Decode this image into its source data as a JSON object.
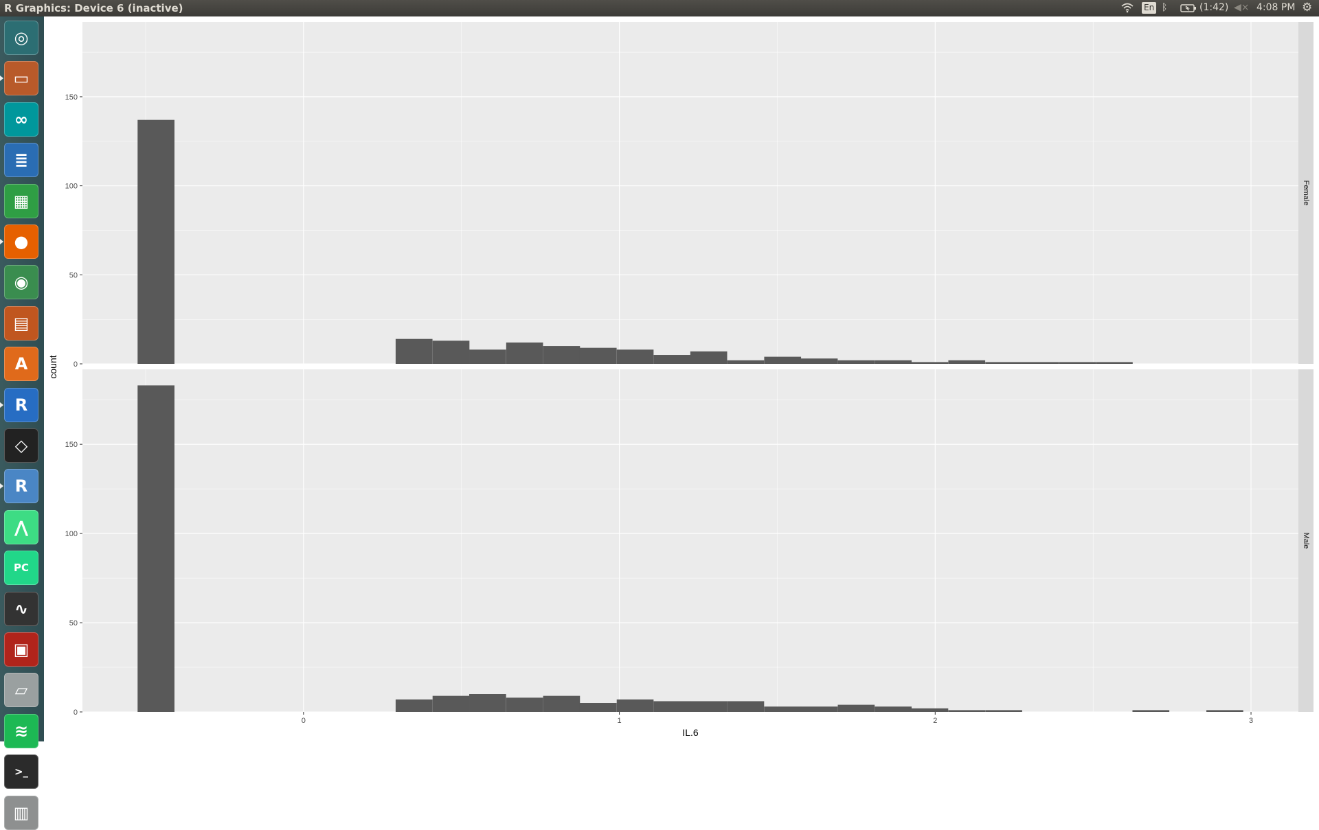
{
  "window": {
    "title": "R Graphics: Device 6 (inactive)"
  },
  "indicators": {
    "wifi_icon": "wifi-icon",
    "language": "En",
    "bluetooth_icon": "bluetooth-icon",
    "battery_icon": "battery-icon",
    "battery_text": "(1:42)",
    "volume_icon": "volume-muted-icon",
    "time": "4:08 PM",
    "settings_icon": "gear-icon"
  },
  "launcher": [
    {
      "name": "ubuntu-dash-icon",
      "color": "#2c6e73"
    },
    {
      "name": "files-icon",
      "color": "#b85a2a"
    },
    {
      "name": "arduino-icon",
      "color": "#00979c"
    },
    {
      "name": "libreoffice-writer-icon",
      "color": "#2a6db3"
    },
    {
      "name": "libreoffice-calc-icon",
      "color": "#2f9e44"
    },
    {
      "name": "firefox-icon",
      "color": "#e66000"
    },
    {
      "name": "chrome-icon",
      "color": "#3a8d4f"
    },
    {
      "name": "libreoffice-impress-icon",
      "color": "#c0561f"
    },
    {
      "name": "software-center-icon",
      "color": "#e06a1b"
    },
    {
      "name": "r-icon",
      "color": "#276dc3"
    },
    {
      "name": "unity-icon",
      "color": "#222222"
    },
    {
      "name": "rstudio-icon",
      "color": "#4a86c5"
    },
    {
      "name": "android-studio-icon",
      "color": "#3ddc84"
    },
    {
      "name": "pycharm-icon",
      "color": "#21d789"
    },
    {
      "name": "system-monitor-icon",
      "color": "#333333"
    },
    {
      "name": "terminal-red-icon",
      "color": "#b0241b"
    },
    {
      "name": "drive-icon",
      "color": "#9aa0a0"
    },
    {
      "name": "spotify-icon",
      "color": "#1db954"
    },
    {
      "name": "terminal-icon",
      "color": "#2b2b2b"
    },
    {
      "name": "trash-icon",
      "color": "#8e9090"
    }
  ],
  "chart_data": {
    "type": "bar",
    "subtype": "faceted-histogram",
    "xlabel": "IL.6",
    "ylabel": "count",
    "x_ticks": [
      "0",
      "1",
      "2",
      "3"
    ],
    "y_ticks": [
      "0",
      "50",
      "100",
      "150"
    ],
    "xlim": [
      -0.7,
      3.15
    ],
    "bin_width": 0.1167,
    "bar_color": "#595959",
    "panel_background": "#ebebeb",
    "grid": true,
    "facets": [
      {
        "label": "Female",
        "ylim": [
          0,
          192
        ],
        "bins": [
          {
            "x": -0.467,
            "count": 137
          },
          {
            "x": 0.35,
            "count": 14
          },
          {
            "x": 0.467,
            "count": 13
          },
          {
            "x": 0.583,
            "count": 8
          },
          {
            "x": 0.7,
            "count": 12
          },
          {
            "x": 0.817,
            "count": 10
          },
          {
            "x": 0.933,
            "count": 9
          },
          {
            "x": 1.05,
            "count": 8
          },
          {
            "x": 1.167,
            "count": 5
          },
          {
            "x": 1.283,
            "count": 7
          },
          {
            "x": 1.4,
            "count": 2
          },
          {
            "x": 1.517,
            "count": 4
          },
          {
            "x": 1.633,
            "count": 3
          },
          {
            "x": 1.75,
            "count": 2
          },
          {
            "x": 1.867,
            "count": 2
          },
          {
            "x": 1.983,
            "count": 1
          },
          {
            "x": 2.1,
            "count": 2
          },
          {
            "x": 2.217,
            "count": 1
          },
          {
            "x": 2.333,
            "count": 1
          },
          {
            "x": 2.45,
            "count": 1
          },
          {
            "x": 2.567,
            "count": 1
          }
        ]
      },
      {
        "label": "Male",
        "ylim": [
          0,
          192
        ],
        "bins": [
          {
            "x": -0.467,
            "count": 183
          },
          {
            "x": 0.35,
            "count": 7
          },
          {
            "x": 0.467,
            "count": 9
          },
          {
            "x": 0.583,
            "count": 10
          },
          {
            "x": 0.7,
            "count": 8
          },
          {
            "x": 0.817,
            "count": 9
          },
          {
            "x": 0.933,
            "count": 5
          },
          {
            "x": 1.05,
            "count": 7
          },
          {
            "x": 1.167,
            "count": 6
          },
          {
            "x": 1.283,
            "count": 6
          },
          {
            "x": 1.4,
            "count": 6
          },
          {
            "x": 1.517,
            "count": 3
          },
          {
            "x": 1.633,
            "count": 3
          },
          {
            "x": 1.75,
            "count": 4
          },
          {
            "x": 1.867,
            "count": 3
          },
          {
            "x": 1.983,
            "count": 2
          },
          {
            "x": 2.1,
            "count": 1
          },
          {
            "x": 2.217,
            "count": 1
          },
          {
            "x": 2.683,
            "count": 1
          },
          {
            "x": 2.917,
            "count": 1
          }
        ]
      }
    ]
  }
}
